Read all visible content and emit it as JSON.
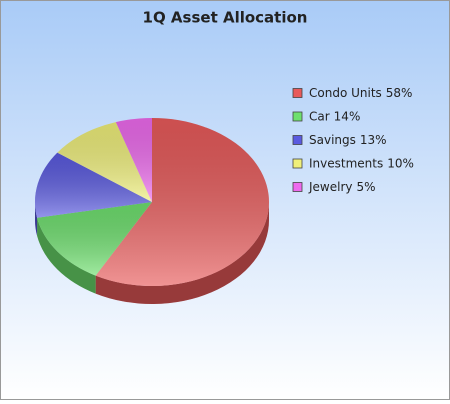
{
  "chart_data": {
    "type": "pie",
    "title": "1Q Asset Allocation",
    "categories": [
      "Condo Units",
      "Car",
      "Savings",
      "Investments",
      "Jewelry"
    ],
    "values": [
      58,
      14,
      13,
      10,
      5
    ],
    "value_labels": [
      "58%",
      "14%",
      "13%",
      "10%",
      "5%"
    ],
    "colors": [
      "#e85a5a",
      "#6ee06e",
      "#5a5ae0",
      "#f0f07a",
      "#ee6aee"
    ],
    "legend": "right"
  }
}
